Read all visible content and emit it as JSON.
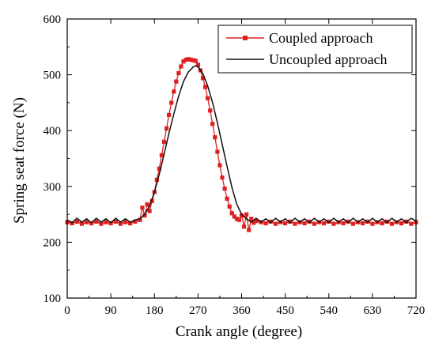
{
  "chart_data": {
    "type": "line",
    "xlabel": "Crank angle (degree)",
    "ylabel": "Spring seat force (N)",
    "xlim": [
      0,
      720
    ],
    "ylim": [
      100,
      600
    ],
    "xticks": [
      0,
      90,
      180,
      270,
      360,
      450,
      540,
      630,
      720
    ],
    "yticks": [
      100,
      200,
      300,
      400,
      500,
      600
    ],
    "grid": false,
    "legend_position": "top-right",
    "series": [
      {
        "name": "Coupled approach",
        "color": "#e02020",
        "marker": "square",
        "x": [
          0,
          10,
          20,
          30,
          40,
          50,
          60,
          70,
          80,
          90,
          100,
          110,
          120,
          130,
          140,
          150,
          155,
          160,
          165,
          170,
          175,
          180,
          185,
          190,
          195,
          200,
          205,
          210,
          215,
          220,
          225,
          230,
          235,
          240,
          245,
          250,
          255,
          260,
          265,
          270,
          275,
          280,
          285,
          290,
          295,
          300,
          305,
          310,
          315,
          320,
          325,
          330,
          335,
          340,
          345,
          350,
          355,
          360,
          365,
          370,
          375,
          380,
          385,
          390,
          400,
          410,
          420,
          430,
          440,
          450,
          460,
          470,
          480,
          490,
          500,
          510,
          520,
          530,
          540,
          550,
          560,
          570,
          580,
          590,
          600,
          610,
          620,
          630,
          640,
          650,
          660,
          670,
          680,
          690,
          700,
          710,
          720
        ],
        "y": [
          236,
          234,
          237,
          233,
          236,
          234,
          237,
          233,
          236,
          234,
          237,
          233,
          236,
          234,
          237,
          240,
          262,
          248,
          268,
          256,
          274,
          290,
          312,
          332,
          356,
          380,
          404,
          428,
          450,
          470,
          488,
          503,
          515,
          524,
          527,
          528,
          527,
          526,
          525,
          518,
          508,
          494,
          478,
          458,
          436,
          412,
          388,
          362,
          338,
          316,
          296,
          278,
          264,
          252,
          246,
          242,
          240,
          248,
          228,
          250,
          222,
          242,
          235,
          238,
          236,
          234,
          237,
          233,
          236,
          234,
          237,
          233,
          236,
          234,
          237,
          233,
          236,
          234,
          237,
          233,
          236,
          234,
          237,
          233,
          236,
          234,
          237,
          233,
          236,
          234,
          237,
          233,
          236,
          234,
          237,
          233,
          236
        ]
      },
      {
        "name": "Uncoupled approach",
        "color": "#111111",
        "marker": "none",
        "x": [
          0,
          10,
          20,
          30,
          40,
          50,
          60,
          70,
          80,
          90,
          100,
          110,
          120,
          130,
          140,
          150,
          160,
          170,
          180,
          190,
          200,
          210,
          220,
          230,
          240,
          250,
          260,
          265,
          270,
          280,
          290,
          300,
          310,
          320,
          330,
          340,
          350,
          360,
          370,
          380,
          390,
          400,
          410,
          420,
          430,
          440,
          450,
          460,
          470,
          480,
          490,
          500,
          510,
          520,
          530,
          540,
          550,
          560,
          570,
          580,
          590,
          600,
          610,
          620,
          630,
          640,
          650,
          660,
          670,
          680,
          690,
          700,
          710,
          720
        ],
        "y": [
          240,
          235,
          243,
          236,
          242,
          235,
          243,
          236,
          242,
          235,
          243,
          236,
          242,
          236,
          240,
          242,
          250,
          265,
          290,
          322,
          358,
          395,
          430,
          462,
          488,
          505,
          514,
          516,
          514,
          502,
          480,
          450,
          414,
          375,
          336,
          298,
          268,
          250,
          242,
          236,
          243,
          236,
          242,
          235,
          243,
          236,
          242,
          235,
          243,
          236,
          242,
          235,
          243,
          236,
          242,
          235,
          243,
          236,
          242,
          235,
          243,
          236,
          242,
          235,
          243,
          236,
          242,
          235,
          243,
          236,
          242,
          235,
          243,
          238
        ]
      }
    ]
  }
}
